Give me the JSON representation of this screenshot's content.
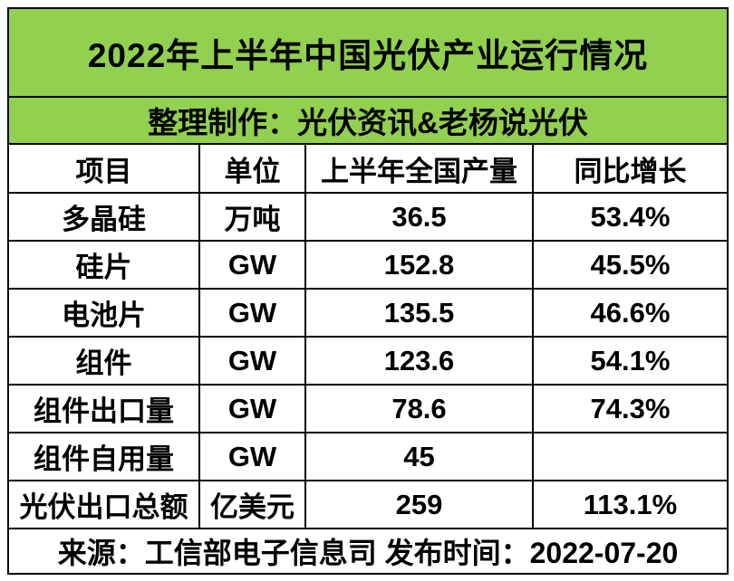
{
  "chart_data": {
    "type": "table",
    "title": "2022年上半年中国光伏产业运行情况",
    "subtitle": "整理制作：光伏资讯&老杨说光伏",
    "columns": [
      "项目",
      "单位",
      "上半年全国产量",
      "同比增长"
    ],
    "rows": [
      [
        "多晶硅",
        "万吨",
        "36.5",
        "53.4%"
      ],
      [
        "硅片",
        "GW",
        "152.8",
        "45.5%"
      ],
      [
        "电池片",
        "GW",
        "135.5",
        "46.6%"
      ],
      [
        "组件",
        "GW",
        "123.6",
        "54.1%"
      ],
      [
        "组件出口量",
        "GW",
        "78.6",
        "74.3%"
      ],
      [
        "组件自用量",
        "GW",
        "45",
        ""
      ],
      [
        "光伏出口总额",
        "亿美元",
        "259",
        "113.1%"
      ]
    ],
    "footer": "来源：工信部电子信息司 发布时间：2022-07-20"
  },
  "colors": {
    "header_green": "#92D050",
    "border": "#000000",
    "text": "#000000",
    "background": "#FFFFFF"
  }
}
